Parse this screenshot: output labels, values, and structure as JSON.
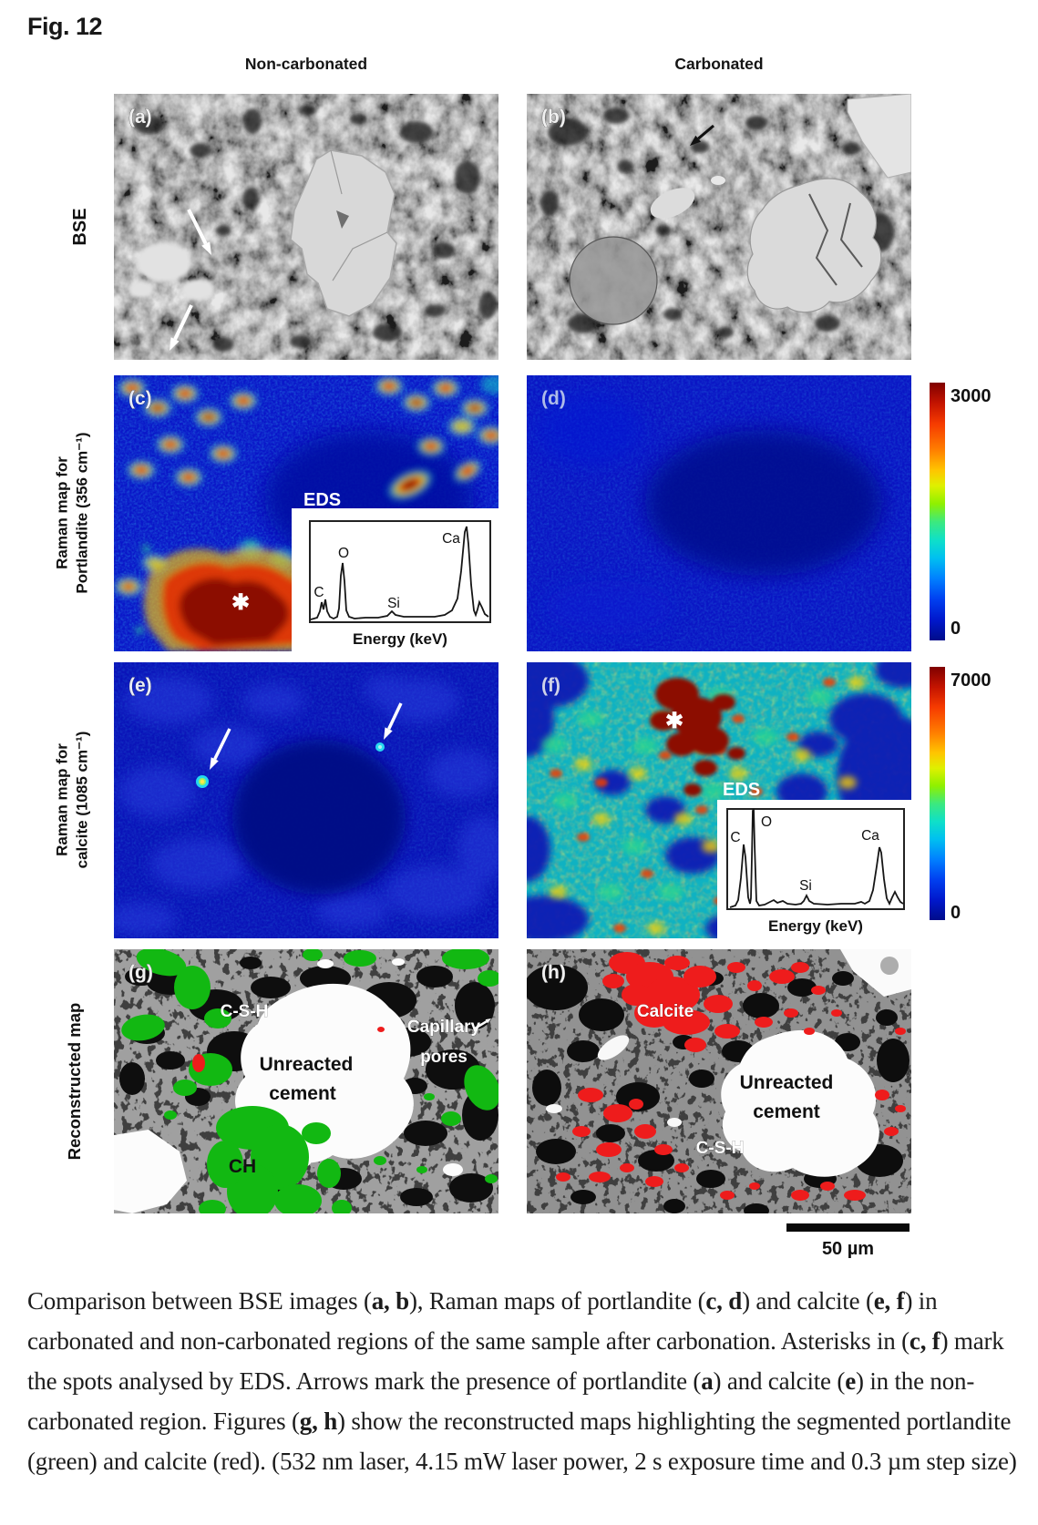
{
  "figure": {
    "title": "Fig. 12"
  },
  "columns": {
    "left": "Non-carbonated",
    "right": "Carbonated"
  },
  "row_labels": {
    "r1": [
      "BSE"
    ],
    "r2": [
      "Raman map for",
      "Portlandite (356 cm⁻¹)"
    ],
    "r3": [
      "Raman map for",
      "calcite (1085 cm⁻¹)"
    ],
    "r4": [
      "Reconstructed map"
    ]
  },
  "panels": {
    "a": {
      "label": "(a)"
    },
    "b": {
      "label": "(b)"
    },
    "c": {
      "label": "(c)"
    },
    "d": {
      "label": "(d)"
    },
    "e": {
      "label": "(e)"
    },
    "f": {
      "label": "(f)"
    },
    "g": {
      "label": "(g)",
      "regions": {
        "csh": "C-S-H",
        "unreacted_line1": "Unreacted",
        "unreacted_line2": "cement",
        "capillary_line1": "Capillary",
        "capillary_line2": "pores",
        "ch": "CH"
      }
    },
    "h": {
      "label": "(h)",
      "regions": {
        "calcite": "Calcite",
        "unreacted_line1": "Unreacted",
        "unreacted_line2": "cement",
        "csh": "C-S-H"
      }
    }
  },
  "eds": {
    "title": "EDS",
    "xlabel": "Energy (keV)",
    "peaks": {
      "c": "C",
      "o": "O",
      "si": "Si",
      "ca": "Ca"
    }
  },
  "colorbars": {
    "portlandite": {
      "max": "3000",
      "min": "0"
    },
    "calcite": {
      "max": "7000",
      "min": "0"
    }
  },
  "scalebar": {
    "label": "50 µm"
  },
  "marks": {
    "asterisk": "✱"
  },
  "colors": {
    "portlandite_green": "#12b812",
    "calcite_red": "#ee1c1c",
    "raman_low_blue": "#0a16c8",
    "jet_max": "#7f0000",
    "jet_min": "#000c8a"
  },
  "caption": {
    "segments": [
      {
        "t": "Comparison between BSE images ("
      },
      {
        "t": "a, b",
        "b": true
      },
      {
        "t": "), Raman maps of portlandite ("
      },
      {
        "t": "c, d",
        "b": true
      },
      {
        "t": ") and calcite ("
      },
      {
        "t": "e, f",
        "b": true
      },
      {
        "t": ") in carbonated and non-carbonated regions of the same sample after carbonation. Asterisks in ("
      },
      {
        "t": "c, f",
        "b": true
      },
      {
        "t": ") mark the spots analysed by EDS. Arrows mark the presence of portlandite ("
      },
      {
        "t": "a",
        "b": true
      },
      {
        "t": ") and calcite ("
      },
      {
        "t": "e",
        "b": true
      },
      {
        "t": ") in the non-carbonated region. Figures ("
      },
      {
        "t": "g, h",
        "b": true
      },
      {
        "t": ") show the reconstructed maps highlighting the segmented portlandite (green) and calcite (red). (532 nm laser, 4.15 mW laser power, 2 s exposure time and 0.3 µm step size)"
      }
    ]
  }
}
